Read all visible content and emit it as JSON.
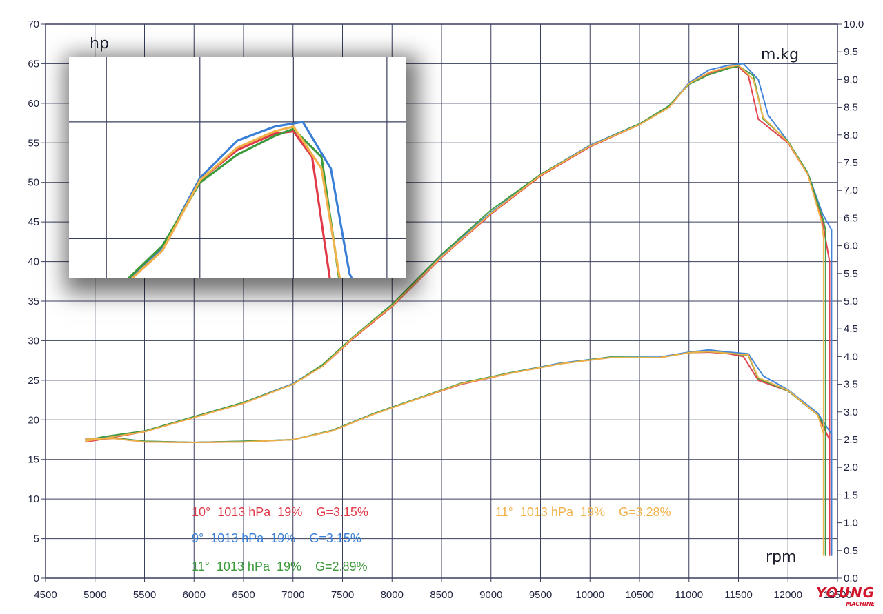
{
  "chart_data": {
    "type": "line",
    "x_axis": {
      "label": "rpm",
      "min": 4500,
      "max": 12500,
      "step": 500,
      "ticks": [
        "4500",
        "5000",
        "5500",
        "6000",
        "6500",
        "7000",
        "7500",
        "8000",
        "8500",
        "9000",
        "9500",
        "10000",
        "10500",
        "11000",
        "11500",
        "12000",
        "12500"
      ]
    },
    "y_left": {
      "label": "hp",
      "min": 0,
      "max": 70,
      "step": 5,
      "ticks": [
        "0",
        "5",
        "10",
        "15",
        "20",
        "25",
        "30",
        "35",
        "40",
        "45",
        "50",
        "55",
        "60",
        "65",
        "70"
      ]
    },
    "y_right": {
      "label": "m.kg",
      "min": 0,
      "max": 10,
      "step": 0.5,
      "ticks": [
        "0.0",
        "0.5",
        "1.0",
        "1.5",
        "2.0",
        "2.5",
        "3.0",
        "3.5",
        "4.0",
        "4.5",
        "5.0",
        "5.5",
        "6.0",
        "6.5",
        "7.0",
        "7.5",
        "8.0",
        "8.5",
        "9.0",
        "9.5",
        "10.0"
      ]
    },
    "grid": true,
    "series": [
      {
        "name": "10°  1013 hPa  19%    G=3.15%",
        "color": "#e03a48",
        "cut": 12420,
        "hp": [
          [
            4900,
            17.2
          ],
          [
            5100,
            17.6
          ],
          [
            5500,
            18.5
          ],
          [
            6000,
            20.3
          ],
          [
            6500,
            22.1
          ],
          [
            7000,
            24.5
          ],
          [
            7300,
            26.8
          ],
          [
            7600,
            30.2
          ],
          [
            8000,
            34.3
          ],
          [
            8500,
            40.5
          ],
          [
            9000,
            46.0
          ],
          [
            9500,
            50.8
          ],
          [
            10000,
            54.5
          ],
          [
            10500,
            57.3
          ],
          [
            10800,
            59.5
          ],
          [
            11000,
            62.5
          ],
          [
            11200,
            63.8
          ],
          [
            11400,
            64.5
          ],
          [
            11500,
            64.6
          ],
          [
            11600,
            63.5
          ],
          [
            11700,
            58.0
          ],
          [
            12000,
            55.0
          ],
          [
            12200,
            51.0
          ],
          [
            12350,
            45.0
          ],
          [
            12420,
            40.0
          ],
          [
            12420,
            3.0
          ]
        ],
        "torque": [
          [
            4900,
            2.5
          ],
          [
            5200,
            2.52
          ],
          [
            5500,
            2.46
          ],
          [
            6000,
            2.45
          ],
          [
            6500,
            2.46
          ],
          [
            7000,
            2.5
          ],
          [
            7400,
            2.66
          ],
          [
            7800,
            2.95
          ],
          [
            8200,
            3.2
          ],
          [
            8700,
            3.5
          ],
          [
            9200,
            3.7
          ],
          [
            9700,
            3.87
          ],
          [
            10200,
            3.98
          ],
          [
            10700,
            3.98
          ],
          [
            11000,
            4.07
          ],
          [
            11200,
            4.08
          ],
          [
            11400,
            4.05
          ],
          [
            11550,
            4.0
          ],
          [
            11700,
            3.57
          ],
          [
            12000,
            3.38
          ],
          [
            12300,
            2.95
          ],
          [
            12420,
            2.5
          ],
          [
            12420,
            0.4
          ]
        ]
      },
      {
        "name": "9°  1013 hPa  19%    G=3.15%",
        "color": "#3a7fd6",
        "cut": 12440,
        "hp": [
          [
            4900,
            17.5
          ],
          [
            5100,
            17.8
          ],
          [
            5500,
            18.6
          ],
          [
            6000,
            20.4
          ],
          [
            6500,
            22.2
          ],
          [
            7000,
            24.6
          ],
          [
            7300,
            26.9
          ],
          [
            7600,
            30.4
          ],
          [
            8000,
            34.5
          ],
          [
            8500,
            40.8
          ],
          [
            9000,
            46.2
          ],
          [
            9500,
            51.0
          ],
          [
            10000,
            54.7
          ],
          [
            10500,
            57.4
          ],
          [
            10800,
            59.6
          ],
          [
            11000,
            62.6
          ],
          [
            11200,
            64.2
          ],
          [
            11400,
            64.8
          ],
          [
            11550,
            65.0
          ],
          [
            11700,
            63.0
          ],
          [
            11800,
            58.5
          ],
          [
            12000,
            55.2
          ],
          [
            12200,
            51.2
          ],
          [
            12350,
            46.0
          ],
          [
            12440,
            44.0
          ],
          [
            12440,
            3.0
          ]
        ],
        "torque": [
          [
            4900,
            2.52
          ],
          [
            5200,
            2.53
          ],
          [
            5500,
            2.47
          ],
          [
            6000,
            2.45
          ],
          [
            6500,
            2.47
          ],
          [
            7000,
            2.5
          ],
          [
            7400,
            2.67
          ],
          [
            7800,
            2.96
          ],
          [
            8200,
            3.21
          ],
          [
            8700,
            3.51
          ],
          [
            9200,
            3.71
          ],
          [
            9700,
            3.88
          ],
          [
            10200,
            3.99
          ],
          [
            10700,
            3.99
          ],
          [
            11000,
            4.08
          ],
          [
            11200,
            4.12
          ],
          [
            11400,
            4.08
          ],
          [
            11600,
            4.05
          ],
          [
            11750,
            3.65
          ],
          [
            12000,
            3.4
          ],
          [
            12300,
            2.98
          ],
          [
            12440,
            2.6
          ],
          [
            12440,
            0.4
          ]
        ]
      },
      {
        "name": "11°  1013 hPa  19%    G=2.89%",
        "color": "#3c9a3c",
        "cut": 12380,
        "hp": [
          [
            4900,
            17.4
          ],
          [
            5100,
            17.9
          ],
          [
            5500,
            18.6
          ],
          [
            6000,
            20.4
          ],
          [
            6500,
            22.2
          ],
          [
            7000,
            24.5
          ],
          [
            7300,
            27.0
          ],
          [
            7600,
            30.4
          ],
          [
            8000,
            34.6
          ],
          [
            8500,
            40.9
          ],
          [
            9000,
            46.5
          ],
          [
            9500,
            51.0
          ],
          [
            10000,
            54.6
          ],
          [
            10500,
            57.4
          ],
          [
            10800,
            59.7
          ],
          [
            11000,
            62.4
          ],
          [
            11200,
            63.6
          ],
          [
            11400,
            64.4
          ],
          [
            11500,
            64.7
          ],
          [
            11650,
            63.5
          ],
          [
            11750,
            58.0
          ],
          [
            12000,
            55.2
          ],
          [
            12200,
            51.2
          ],
          [
            12350,
            45.5
          ],
          [
            12380,
            44.0
          ],
          [
            12380,
            3.0
          ]
        ],
        "torque": [
          [
            4900,
            2.5
          ],
          [
            5200,
            2.53
          ],
          [
            5500,
            2.47
          ],
          [
            6000,
            2.45
          ],
          [
            6500,
            2.47
          ],
          [
            7000,
            2.5
          ],
          [
            7400,
            2.67
          ],
          [
            7800,
            2.96
          ],
          [
            8200,
            3.21
          ],
          [
            8700,
            3.52
          ],
          [
            9200,
            3.71
          ],
          [
            9700,
            3.87
          ],
          [
            10200,
            3.99
          ],
          [
            10700,
            3.98
          ],
          [
            11000,
            4.07
          ],
          [
            11200,
            4.09
          ],
          [
            11400,
            4.06
          ],
          [
            11600,
            4.02
          ],
          [
            11700,
            3.6
          ],
          [
            12000,
            3.38
          ],
          [
            12300,
            2.95
          ],
          [
            12380,
            2.7
          ],
          [
            12380,
            0.4
          ]
        ]
      },
      {
        "name": "11°  1013 hPa  19%    G=3.28%",
        "color": "#f2b24a",
        "cut": 12360,
        "hp": [
          [
            4900,
            17.3
          ],
          [
            5100,
            17.7
          ],
          [
            5500,
            18.5
          ],
          [
            6000,
            20.3
          ],
          [
            6500,
            22.1
          ],
          [
            7000,
            24.5
          ],
          [
            7300,
            26.8
          ],
          [
            7600,
            30.3
          ],
          [
            8000,
            34.4
          ],
          [
            8500,
            40.6
          ],
          [
            9000,
            46.1
          ],
          [
            9500,
            50.9
          ],
          [
            10000,
            54.6
          ],
          [
            10500,
            57.3
          ],
          [
            10800,
            59.5
          ],
          [
            11000,
            62.5
          ],
          [
            11200,
            63.9
          ],
          [
            11400,
            64.6
          ],
          [
            11500,
            64.8
          ],
          [
            11650,
            63.0
          ],
          [
            11750,
            58.2
          ],
          [
            12000,
            55.1
          ],
          [
            12200,
            51.0
          ],
          [
            12340,
            45.0
          ],
          [
            12360,
            43.0
          ],
          [
            12360,
            3.0
          ]
        ],
        "torque": [
          [
            4900,
            2.51
          ],
          [
            5200,
            2.52
          ],
          [
            5500,
            2.46
          ],
          [
            6000,
            2.45
          ],
          [
            6500,
            2.46
          ],
          [
            7000,
            2.5
          ],
          [
            7400,
            2.66
          ],
          [
            7800,
            2.95
          ],
          [
            8200,
            3.2
          ],
          [
            8700,
            3.51
          ],
          [
            9200,
            3.7
          ],
          [
            9700,
            3.87
          ],
          [
            10200,
            3.98
          ],
          [
            10700,
            3.98
          ],
          [
            11000,
            4.07
          ],
          [
            11200,
            4.09
          ],
          [
            11400,
            4.06
          ],
          [
            11600,
            4.03
          ],
          [
            11700,
            3.62
          ],
          [
            12000,
            3.39
          ],
          [
            12300,
            2.95
          ],
          [
            12360,
            2.6
          ],
          [
            12360,
            0.4
          ]
        ]
      }
    ],
    "inset": {
      "label": "hp",
      "x_range": [
        10300,
        12100
      ],
      "y_range": [
        58.3,
        67.8
      ]
    }
  },
  "watermark": {
    "main": "YOUNG",
    "sub": "MACHINE"
  }
}
